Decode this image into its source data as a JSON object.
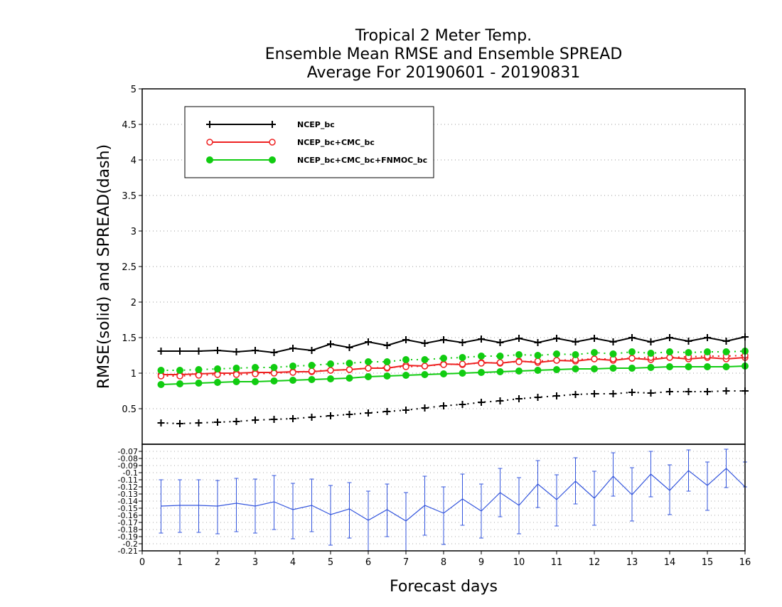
{
  "chart_data": [
    {
      "type": "line",
      "title": [
        "Tropical 2 Meter Temp.",
        "Ensemble Mean RMSE and Ensemble SPREAD",
        "Average For 20190601 - 20190831"
      ],
      "ylabel": "RMSE(solid) and SPREAD(dash)",
      "xlim": [
        0,
        16
      ],
      "ylim": [
        0,
        5
      ],
      "yticks": [
        "0.5",
        "1",
        "1.5",
        "2",
        "2.5",
        "3",
        "3.5",
        "4",
        "4.5",
        "5"
      ],
      "grid": true,
      "legend_position": "top-left",
      "x": [
        0.5,
        1,
        1.5,
        2,
        2.5,
        3,
        3.5,
        4,
        4.5,
        5,
        5.5,
        6,
        6.5,
        7,
        7.5,
        8,
        8.5,
        9,
        9.5,
        10,
        10.5,
        11,
        11.5,
        12,
        12.5,
        13,
        13.5,
        14,
        14.5,
        15,
        15.5,
        16
      ],
      "series": [
        {
          "name": "NCEP_bc",
          "color": "#000000",
          "marker": "plus",
          "rmse": [
            1.31,
            1.31,
            1.31,
            1.32,
            1.3,
            1.32,
            1.29,
            1.35,
            1.32,
            1.41,
            1.36,
            1.44,
            1.39,
            1.47,
            1.42,
            1.47,
            1.43,
            1.48,
            1.43,
            1.49,
            1.43,
            1.49,
            1.44,
            1.49,
            1.44,
            1.5,
            1.44,
            1.5,
            1.45,
            1.5,
            1.45,
            1.51
          ],
          "spread": [
            0.3,
            0.29,
            0.3,
            0.31,
            0.32,
            0.34,
            0.35,
            0.36,
            0.38,
            0.4,
            0.42,
            0.44,
            0.46,
            0.48,
            0.51,
            0.54,
            0.56,
            0.59,
            0.61,
            0.64,
            0.66,
            0.68,
            0.7,
            0.71,
            0.71,
            0.73,
            0.72,
            0.74,
            0.74,
            0.74,
            0.75,
            0.75
          ]
        },
        {
          "name": "NCEP_bc+CMC_bc",
          "color": "#ee2222",
          "marker": "open-circle",
          "rmse": [
            0.98,
            0.98,
            0.99,
            1.0,
            1.0,
            1.01,
            1.01,
            1.02,
            1.02,
            1.04,
            1.05,
            1.07,
            1.07,
            1.11,
            1.1,
            1.13,
            1.12,
            1.15,
            1.14,
            1.17,
            1.15,
            1.18,
            1.17,
            1.2,
            1.18,
            1.21,
            1.19,
            1.22,
            1.2,
            1.22,
            1.2,
            1.22
          ],
          "spread": [
            0.96,
            0.96,
            0.97,
            0.98,
            0.98,
            0.99,
            1.0,
            1.01,
            1.03,
            1.04,
            1.05,
            1.07,
            1.08,
            1.09,
            1.1,
            1.12,
            1.13,
            1.14,
            1.15,
            1.16,
            1.17,
            1.18,
            1.19,
            1.2,
            1.2,
            1.21,
            1.22,
            1.22,
            1.23,
            1.24,
            1.24,
            1.25
          ]
        },
        {
          "name": "NCEP_bc+CMC_bc+FNMOC_bc",
          "color": "#11cc11",
          "marker": "filled-circle",
          "rmse": [
            0.84,
            0.85,
            0.86,
            0.87,
            0.88,
            0.88,
            0.89,
            0.9,
            0.91,
            0.92,
            0.93,
            0.95,
            0.96,
            0.97,
            0.98,
            0.99,
            1.0,
            1.01,
            1.02,
            1.03,
            1.04,
            1.05,
            1.06,
            1.06,
            1.07,
            1.07,
            1.08,
            1.09,
            1.09,
            1.09,
            1.09,
            1.1
          ],
          "spread": [
            1.04,
            1.04,
            1.05,
            1.06,
            1.07,
            1.08,
            1.08,
            1.1,
            1.11,
            1.13,
            1.14,
            1.16,
            1.16,
            1.19,
            1.19,
            1.21,
            1.22,
            1.24,
            1.24,
            1.26,
            1.25,
            1.27,
            1.26,
            1.29,
            1.27,
            1.3,
            1.28,
            1.3,
            1.29,
            1.3,
            1.3,
            1.31
          ]
        }
      ]
    },
    {
      "type": "line",
      "xlabel": "Forecast days",
      "xlim": [
        0,
        16
      ],
      "xticks": [
        "0",
        "1",
        "2",
        "3",
        "4",
        "5",
        "6",
        "7",
        "8",
        "9",
        "10",
        "11",
        "12",
        "13",
        "14",
        "15",
        "16"
      ],
      "ylim": [
        -0.21,
        -0.06
      ],
      "yticks": [
        "-0.07",
        "-0.08",
        "-0.09",
        "-0.1",
        "-0.11",
        "-0.12",
        "-0.13",
        "-0.14",
        "-0.15",
        "-0.16",
        "-0.17",
        "-0.18",
        "-0.19",
        "-0.2",
        "-0.21"
      ],
      "grid": true,
      "series": [
        {
          "color": "#3355dd",
          "error_bars": true,
          "x": [
            0.5,
            1,
            1.5,
            2,
            2.5,
            3,
            3.5,
            4,
            4.5,
            5,
            5.5,
            6,
            6.5,
            7,
            7.5,
            8,
            8.5,
            9,
            9.5,
            10,
            10.5,
            11,
            11.5,
            12,
            12.5,
            13,
            13.5,
            14,
            14.5,
            15,
            15.5,
            16
          ],
          "y": [
            -0.147,
            -0.146,
            -0.146,
            -0.147,
            -0.143,
            -0.147,
            -0.141,
            -0.152,
            -0.146,
            -0.159,
            -0.151,
            -0.167,
            -0.152,
            -0.168,
            -0.146,
            -0.157,
            -0.137,
            -0.154,
            -0.128,
            -0.146,
            -0.116,
            -0.138,
            -0.112,
            -0.136,
            -0.105,
            -0.131,
            -0.102,
            -0.125,
            -0.097,
            -0.118,
            -0.094,
            -0.12
          ],
          "lower": [
            -0.185,
            -0.184,
            -0.184,
            -0.186,
            -0.183,
            -0.185,
            -0.18,
            -0.193,
            -0.183,
            -0.202,
            -0.192,
            -0.212,
            -0.19,
            -0.212,
            -0.188,
            -0.201,
            -0.174,
            -0.192,
            -0.162,
            -0.186,
            -0.149,
            -0.175,
            -0.144,
            -0.174,
            -0.133,
            -0.168,
            -0.134,
            -0.159,
            -0.126,
            -0.153,
            -0.121,
            -0.12
          ],
          "upper": [
            -0.11,
            -0.11,
            -0.11,
            -0.111,
            -0.108,
            -0.109,
            -0.104,
            -0.115,
            -0.109,
            -0.118,
            -0.114,
            -0.126,
            -0.116,
            -0.128,
            -0.105,
            -0.12,
            -0.102,
            -0.116,
            -0.094,
            -0.107,
            -0.083,
            -0.103,
            -0.079,
            -0.098,
            -0.072,
            -0.093,
            -0.07,
            -0.089,
            -0.068,
            -0.085,
            -0.067,
            -0.085
          ]
        }
      ]
    }
  ]
}
